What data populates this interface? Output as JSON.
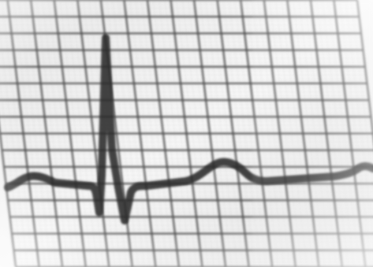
{
  "colors": {
    "paper": "#f2f2f2",
    "paper_edge": "#d6d6d6",
    "grid_major": "#3a3a3a",
    "grid_minor": "#9a9a9a",
    "trace": "#2a2a2a",
    "vignette": "#ffffff"
  },
  "icons": {
    "grid": "ecg-grid-icon",
    "waveform": "ecg-waveform-icon"
  }
}
